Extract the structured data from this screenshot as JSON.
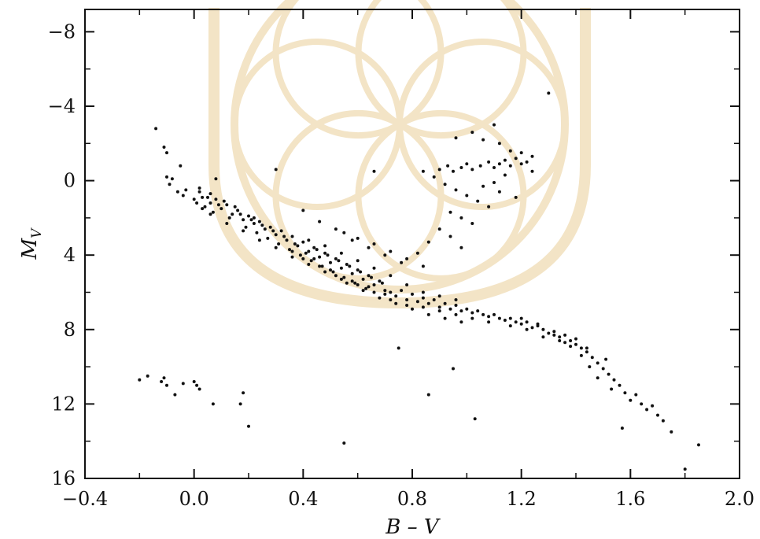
{
  "chart_data": {
    "type": "scatter",
    "title": "",
    "xlabel": "B – V",
    "ylabel_main": "M",
    "ylabel_sub": "V",
    "xlim": [
      -0.4,
      2.0
    ],
    "ylim": [
      16,
      -9.2
    ],
    "y_inverted": true,
    "grid": false,
    "legend": "none",
    "x_ticks": [
      -0.4,
      0.0,
      0.4,
      0.8,
      1.2,
      1.6,
      2.0
    ],
    "x_tick_labels": [
      "−0.4",
      "0.0",
      "0.4",
      "0.8",
      "1.2",
      "1.6",
      "2.0"
    ],
    "y_ticks": [
      -8,
      -4,
      0,
      4,
      8,
      12,
      16
    ],
    "y_tick_labels": [
      "−8",
      "−4",
      "0",
      "4",
      "8",
      "12",
      "16"
    ],
    "point_color": "#111111",
    "watermark_color": "#efdcb4",
    "series": [
      {
        "points": [
          [
            -0.14,
            -2.8
          ],
          [
            -0.11,
            -1.8
          ],
          [
            -0.1,
            -1.5
          ],
          [
            -0.05,
            -0.8
          ],
          [
            -0.1,
            -0.2
          ],
          [
            -0.08,
            -0.1
          ],
          [
            -0.06,
            0.6
          ],
          [
            -0.04,
            0.8
          ],
          [
            -0.09,
            0.2
          ],
          [
            -0.03,
            0.5
          ],
          [
            0.02,
            0.4
          ],
          [
            0.03,
            0.9
          ],
          [
            0.06,
            1.2
          ],
          [
            0.04,
            1.4
          ],
          [
            0.08,
            1.0
          ],
          [
            0.1,
            1.5
          ],
          [
            0.07,
            1.7
          ],
          [
            0.12,
            1.3
          ],
          [
            0.14,
            1.8
          ],
          [
            0.16,
            1.6
          ],
          [
            0.13,
            2.0
          ],
          [
            0.18,
            2.1
          ],
          [
            0.2,
            1.9
          ],
          [
            0.22,
            2.3
          ],
          [
            0.19,
            2.5
          ],
          [
            0.24,
            2.2
          ],
          [
            0.26,
            2.6
          ],
          [
            0.23,
            2.8
          ],
          [
            0.28,
            2.5
          ],
          [
            0.3,
            2.9
          ],
          [
            0.27,
            3.1
          ],
          [
            0.32,
            2.7
          ],
          [
            0.34,
            3.2
          ],
          [
            0.31,
            3.4
          ],
          [
            0.36,
            3.0
          ],
          [
            0.38,
            3.5
          ],
          [
            0.35,
            3.7
          ],
          [
            0.4,
            3.3
          ],
          [
            0.42,
            3.8
          ],
          [
            0.39,
            4.0
          ],
          [
            0.44,
            3.6
          ],
          [
            0.46,
            4.1
          ],
          [
            0.43,
            4.3
          ],
          [
            0.48,
            3.9
          ],
          [
            0.5,
            4.4
          ],
          [
            0.47,
            4.6
          ],
          [
            0.52,
            4.2
          ],
          [
            0.54,
            4.7
          ],
          [
            0.51,
            4.9
          ],
          [
            0.56,
            4.5
          ],
          [
            0.58,
            5.0
          ],
          [
            0.55,
            5.2
          ],
          [
            0.6,
            4.8
          ],
          [
            0.62,
            5.3
          ],
          [
            0.59,
            5.5
          ],
          [
            0.64,
            5.1
          ],
          [
            0.66,
            5.6
          ],
          [
            0.63,
            5.8
          ],
          [
            0.68,
            5.4
          ],
          [
            0.7,
            5.9
          ],
          [
            0.72,
            6.0
          ],
          [
            0.74,
            6.2
          ],
          [
            0.76,
            5.9
          ],
          [
            0.78,
            6.4
          ],
          [
            0.8,
            6.1
          ],
          [
            0.82,
            6.5
          ],
          [
            0.84,
            6.3
          ],
          [
            0.86,
            6.6
          ],
          [
            0.88,
            6.4
          ],
          [
            0.9,
            6.8
          ],
          [
            0.92,
            6.6
          ],
          [
            0.94,
            6.9
          ],
          [
            0.96,
            6.7
          ],
          [
            0.98,
            7.0
          ],
          [
            1.0,
            6.9
          ],
          [
            1.02,
            7.1
          ],
          [
            1.04,
            7.0
          ],
          [
            1.06,
            7.2
          ],
          [
            1.08,
            7.3
          ],
          [
            1.1,
            7.2
          ],
          [
            1.12,
            7.4
          ],
          [
            1.14,
            7.5
          ],
          [
            1.16,
            7.4
          ],
          [
            1.18,
            7.6
          ],
          [
            1.2,
            7.7
          ],
          [
            1.22,
            7.6
          ],
          [
            1.24,
            7.9
          ],
          [
            1.26,
            7.8
          ],
          [
            1.28,
            8.0
          ],
          [
            1.3,
            8.2
          ],
          [
            1.32,
            8.1
          ],
          [
            1.34,
            8.4
          ],
          [
            1.36,
            8.3
          ],
          [
            1.38,
            8.6
          ],
          [
            1.4,
            8.8
          ],
          [
            1.42,
            9.0
          ],
          [
            1.44,
            9.2
          ],
          [
            1.46,
            9.5
          ],
          [
            1.48,
            9.8
          ],
          [
            1.5,
            10.1
          ],
          [
            1.52,
            10.4
          ],
          [
            1.54,
            10.7
          ],
          [
            1.56,
            11.0
          ],
          [
            1.58,
            11.4
          ],
          [
            1.6,
            11.8
          ],
          [
            1.62,
            11.5
          ],
          [
            1.64,
            12.0
          ],
          [
            1.66,
            12.3
          ],
          [
            1.68,
            12.1
          ],
          [
            1.7,
            12.6
          ],
          [
            1.72,
            12.9
          ],
          [
            1.75,
            13.5
          ],
          [
            1.85,
            14.2
          ],
          [
            1.8,
            15.5
          ],
          [
            1.57,
            13.3
          ],
          [
            1.42,
            9.4
          ],
          [
            1.48,
            10.6
          ],
          [
            1.53,
            11.2
          ],
          [
            1.45,
            10.0
          ],
          [
            1.51,
            9.6
          ],
          [
            0.45,
            3.7
          ],
          [
            0.49,
            4.0
          ],
          [
            0.53,
            4.3
          ],
          [
            0.57,
            4.6
          ],
          [
            0.61,
            4.9
          ],
          [
            0.65,
            5.2
          ],
          [
            0.69,
            5.5
          ],
          [
            0.41,
            3.9
          ],
          [
            0.37,
            3.4
          ],
          [
            0.33,
            3.0
          ],
          [
            0.29,
            2.7
          ],
          [
            0.25,
            2.4
          ],
          [
            0.21,
            2.1
          ],
          [
            0.17,
            1.8
          ],
          [
            0.15,
            1.4
          ],
          [
            0.11,
            1.1
          ],
          [
            0.09,
            1.3
          ],
          [
            0.05,
            0.9
          ],
          [
            0.01,
            1.2
          ],
          [
            0.06,
            0.7
          ],
          [
            0.44,
            4.2
          ],
          [
            0.5,
            4.8
          ],
          [
            0.58,
            5.4
          ],
          [
            0.64,
            5.7
          ],
          [
            0.7,
            6.1
          ],
          [
            0.36,
            3.8
          ],
          [
            0.4,
            4.2
          ],
          [
            0.46,
            4.6
          ],
          [
            0.52,
            5.1
          ],
          [
            0.56,
            5.5
          ],
          [
            0.62,
            5.9
          ],
          [
            0.68,
            6.3
          ],
          [
            0.74,
            6.6
          ],
          [
            0.8,
            6.9
          ],
          [
            0.86,
            7.2
          ],
          [
            0.92,
            7.4
          ],
          [
            0.98,
            7.6
          ],
          [
            0.42,
            3.2
          ],
          [
            0.48,
            3.5
          ],
          [
            0.54,
            3.9
          ],
          [
            0.6,
            4.3
          ],
          [
            0.66,
            4.7
          ],
          [
            0.72,
            5.1
          ],
          [
            0.78,
            5.6
          ],
          [
            0.84,
            6.0
          ],
          [
            0.9,
            6.2
          ],
          [
            0.96,
            6.4
          ],
          [
            0.75,
            9.0
          ],
          [
            0.95,
            10.1
          ],
          [
            0.86,
            11.5
          ],
          [
            1.03,
            12.8
          ],
          [
            0.55,
            14.1
          ],
          [
            -0.2,
            10.7
          ],
          [
            -0.17,
            10.5
          ],
          [
            -0.12,
            10.8
          ],
          [
            -0.1,
            11.0
          ],
          [
            -0.07,
            11.5
          ],
          [
            -0.04,
            10.9
          ],
          [
            0.0,
            10.8
          ],
          [
            0.02,
            11.2
          ],
          [
            0.07,
            12.0
          ],
          [
            0.18,
            11.4
          ],
          [
            0.17,
            12.0
          ],
          [
            0.2,
            13.2
          ],
          [
            -0.11,
            10.6
          ],
          [
            0.01,
            11.0
          ],
          [
            0.9,
            -0.6
          ],
          [
            0.93,
            -0.8
          ],
          [
            0.95,
            -0.5
          ],
          [
            0.98,
            -0.7
          ],
          [
            1.0,
            -0.9
          ],
          [
            1.02,
            -0.6
          ],
          [
            1.05,
            -0.8
          ],
          [
            1.08,
            -1.0
          ],
          [
            1.1,
            -0.7
          ],
          [
            1.12,
            -0.9
          ],
          [
            1.14,
            -1.1
          ],
          [
            1.16,
            -0.8
          ],
          [
            1.18,
            -1.2
          ],
          [
            1.2,
            -0.9
          ],
          [
            1.22,
            -1.0
          ],
          [
            1.24,
            -1.3
          ],
          [
            0.92,
            0.2
          ],
          [
            0.96,
            0.5
          ],
          [
            1.0,
            0.8
          ],
          [
            1.04,
            1.1
          ],
          [
            1.08,
            1.4
          ],
          [
            0.94,
            1.7
          ],
          [
            0.98,
            2.0
          ],
          [
            1.02,
            2.3
          ],
          [
            0.9,
            2.6
          ],
          [
            0.94,
            3.0
          ],
          [
            0.86,
            3.3
          ],
          [
            0.98,
            3.6
          ],
          [
            0.82,
            3.9
          ],
          [
            1.06,
            0.3
          ],
          [
            1.12,
            0.6
          ],
          [
            1.18,
            0.9
          ],
          [
            1.14,
            -0.3
          ],
          [
            1.1,
            0.1
          ],
          [
            0.84,
            -0.5
          ],
          [
            0.88,
            -0.2
          ],
          [
            0.96,
            -2.3
          ],
          [
            1.02,
            -2.6
          ],
          [
            1.06,
            -2.2
          ],
          [
            1.1,
            -3.0
          ],
          [
            1.12,
            -2.0
          ],
          [
            1.2,
            -1.5
          ],
          [
            1.24,
            -0.5
          ],
          [
            1.3,
            -4.7
          ],
          [
            1.16,
            -1.6
          ],
          [
            0.66,
            -0.5
          ],
          [
            0.3,
            -0.6
          ],
          [
            0.08,
            -0.1
          ],
          [
            0.22,
            2.0
          ],
          [
            0.4,
            1.6
          ],
          [
            0.46,
            2.2
          ],
          [
            0.52,
            2.6
          ],
          [
            0.58,
            3.2
          ],
          [
            0.64,
            3.6
          ],
          [
            0.7,
            4.0
          ],
          [
            0.76,
            4.4
          ],
          [
            0.55,
            2.8
          ],
          [
            0.6,
            3.1
          ],
          [
            0.66,
            3.4
          ],
          [
            0.72,
            3.8
          ],
          [
            0.78,
            4.2
          ],
          [
            0.84,
            4.6
          ],
          [
            1.2,
            7.4
          ],
          [
            1.26,
            7.7
          ],
          [
            1.32,
            8.3
          ],
          [
            1.36,
            8.7
          ],
          [
            1.4,
            8.5
          ],
          [
            1.44,
            9.0
          ],
          [
            1.38,
            8.9
          ],
          [
            1.34,
            8.6
          ],
          [
            1.28,
            8.4
          ],
          [
            1.22,
            8.0
          ],
          [
            1.16,
            7.8
          ],
          [
            1.08,
            7.6
          ],
          [
            1.02,
            7.4
          ],
          [
            0.96,
            7.2
          ],
          [
            0.9,
            7.0
          ],
          [
            0.84,
            6.8
          ],
          [
            0.78,
            6.7
          ],
          [
            0.72,
            6.4
          ],
          [
            0.66,
            6.0
          ],
          [
            0.6,
            5.6
          ],
          [
            0.54,
            5.3
          ],
          [
            0.48,
            4.9
          ],
          [
            0.42,
            4.5
          ],
          [
            0.36,
            4.1
          ],
          [
            0.3,
            3.6
          ],
          [
            0.24,
            3.2
          ],
          [
            0.18,
            2.7
          ],
          [
            0.12,
            2.3
          ],
          [
            0.06,
            1.8
          ],
          [
            0.03,
            1.5
          ],
          [
            0.0,
            1.0
          ],
          [
            0.02,
            0.6
          ]
        ]
      }
    ]
  }
}
